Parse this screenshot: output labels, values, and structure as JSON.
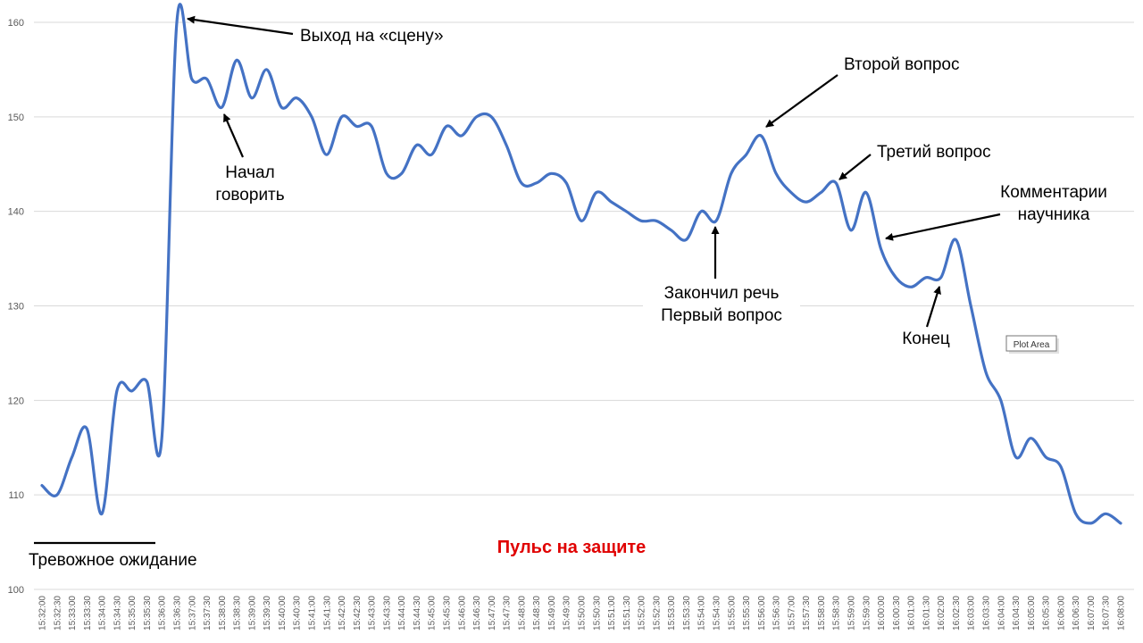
{
  "chart_data": {
    "type": "line",
    "title": "Пульс на защите",
    "title_color": "#E00000",
    "series_color": "#4472C4",
    "grid_color": "#D9D9D9",
    "ylim": [
      100,
      160
    ],
    "yticks": [
      100,
      110,
      120,
      130,
      140,
      150,
      160
    ],
    "grid": true,
    "x": [
      "15:32:00",
      "15:32:30",
      "15:33:00",
      "15:33:30",
      "15:34:00",
      "15:34:30",
      "15:35:00",
      "15:35:30",
      "15:36:00",
      "15:36:30",
      "15:37:00",
      "15:37:30",
      "15:38:00",
      "15:38:30",
      "15:39:00",
      "15:39:30",
      "15:40:00",
      "15:40:30",
      "15:41:00",
      "15:41:30",
      "15:42:00",
      "15:42:30",
      "15:43:00",
      "15:43:30",
      "15:44:00",
      "15:44:30",
      "15:45:00",
      "15:45:30",
      "15:46:00",
      "15:46:30",
      "15:47:00",
      "15:47:30",
      "15:48:00",
      "15:48:30",
      "15:49:00",
      "15:49:30",
      "15:50:00",
      "15:50:30",
      "15:51:00",
      "15:51:30",
      "15:52:00",
      "15:52:30",
      "15:53:00",
      "15:53:30",
      "15:54:00",
      "15:54:30",
      "15:55:00",
      "15:55:30",
      "15:56:00",
      "15:56:30",
      "15:57:00",
      "15:57:30",
      "15:58:00",
      "15:58:30",
      "15:59:00",
      "15:59:30",
      "16:00:00",
      "16:00:30",
      "16:01:00",
      "16:01:30",
      "16:02:00",
      "16:02:30",
      "16:03:00",
      "16:03:30",
      "16:04:00",
      "16:04:30",
      "16:05:00",
      "16:05:30",
      "16:06:00",
      "16:06:30",
      "16:07:00",
      "16:07:30",
      "16:08:00"
    ],
    "series": [
      {
        "values": [
          111,
          110,
          114,
          117,
          108,
          121,
          121,
          122,
          116,
          160,
          154,
          154,
          151,
          156,
          152,
          155,
          151,
          152,
          150,
          146,
          150,
          149,
          149,
          144,
          144,
          147,
          146,
          149,
          148,
          150,
          150,
          147,
          143,
          143,
          144,
          143,
          139,
          142,
          141,
          140,
          139,
          139,
          138,
          137,
          140,
          139,
          144,
          146,
          148,
          144,
          142,
          141,
          142,
          143,
          138,
          142,
          136,
          133,
          132,
          133,
          133,
          137,
          130,
          123,
          120,
          114,
          116,
          114,
          113,
          108,
          107,
          108,
          107
        ]
      }
    ],
    "annotations": [
      {
        "lines": [
          "Выход на «сцену»"
        ],
        "at": "15:36:30"
      },
      {
        "lines": [
          "Начал",
          "говорить"
        ],
        "at": "15:38:00"
      },
      {
        "lines": [
          "Тревожное ожидание"
        ],
        "range": [
          "15:32:00",
          "15:35:30"
        ]
      },
      {
        "lines": [
          "Закончил речь",
          "Первый вопрос"
        ],
        "at": "15:54:30"
      },
      {
        "lines": [
          "Второй вопрос"
        ],
        "at": "15:56:00"
      },
      {
        "lines": [
          "Третий вопрос"
        ],
        "at": "15:58:30"
      },
      {
        "lines": [
          "Комментарии",
          "научника"
        ],
        "at": "16:00:30"
      },
      {
        "lines": [
          "Конец"
        ],
        "at": "16:02:00"
      }
    ],
    "tooltip": "Plot Area"
  }
}
